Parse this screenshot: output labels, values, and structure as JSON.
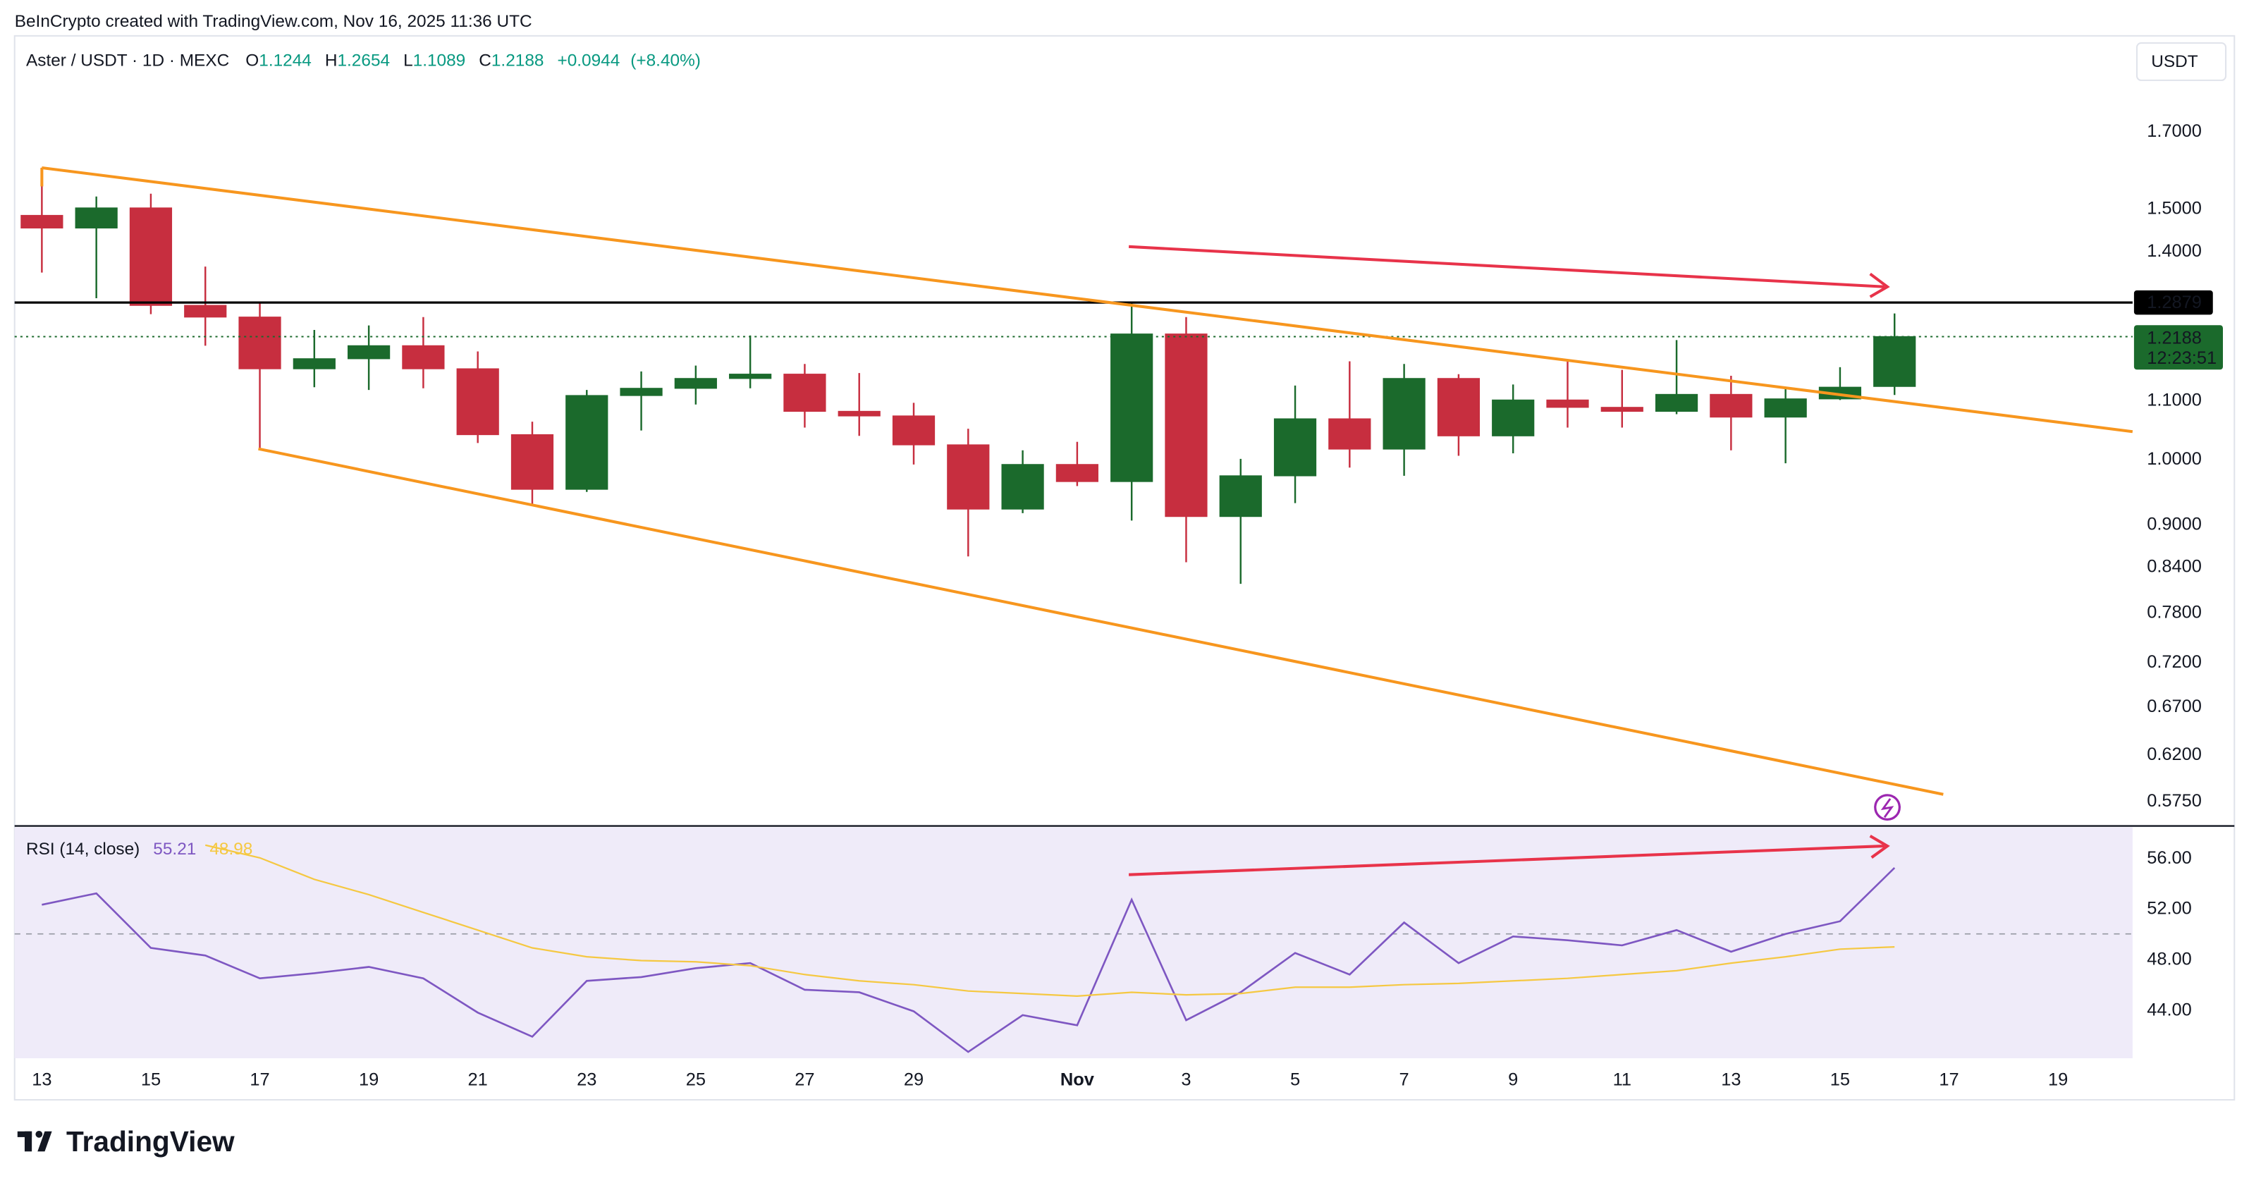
{
  "header": {
    "attribution": "BeInCrypto created with TradingView.com, Nov 16, 2025 11:36 UTC",
    "symbol": "Aster / USDT · 1D · MEXC",
    "currency": "USDT",
    "logo": "TradingView"
  },
  "chart_data": [
    {
      "type": "candlestick",
      "categories": [
        "13",
        null,
        "15",
        null,
        "17",
        null,
        "19",
        null,
        "21",
        null,
        "23",
        null,
        "25",
        null,
        "27",
        null,
        "29",
        null,
        null,
        "Nov",
        null,
        "3",
        null,
        "5",
        null,
        "7",
        null,
        "9",
        null,
        "11",
        null,
        "13",
        null,
        "15",
        null,
        "17",
        null,
        "19",
        null
      ],
      "open": [
        1.483,
        1.453,
        1.501,
        1.282,
        1.258,
        1.157,
        1.176,
        1.201,
        1.157,
        1.04,
        0.952,
        1.108,
        1.121,
        1.139,
        1.147,
        1.08,
        1.072,
        1.023,
        0.922,
        0.991,
        0.964,
        1.224,
        0.911,
        0.973,
        1.067,
        1.016,
        1.139,
        1.038,
        1.1,
        1.087,
        1.08,
        1.11,
        1.07,
        1.102,
        1.1244,
        null,
        null,
        null,
        null
      ],
      "high": [
        1.602,
        1.529,
        1.536,
        1.365,
        1.288,
        1.232,
        1.241,
        1.258,
        1.19,
        1.062,
        1.118,
        1.152,
        1.163,
        1.221,
        1.166,
        1.149,
        1.095,
        1.05,
        1.014,
        1.028,
        1.288,
        1.258,
        1.0,
        1.126,
        1.171,
        1.166,
        1.147,
        1.128,
        1.171,
        1.155,
        1.212,
        1.144,
        1.123,
        1.16,
        1.2654,
        null,
        null,
        null,
        null
      ],
      "low": [
        1.352,
        1.297,
        1.264,
        1.201,
        1.016,
        1.123,
        1.118,
        1.121,
        1.026,
        0.928,
        0.948,
        1.047,
        1.092,
        1.121,
        1.052,
        1.038,
        0.991,
        0.854,
        0.916,
        0.957,
        0.905,
        0.846,
        0.817,
        0.931,
        0.986,
        0.973,
        1.005,
        1.009,
        1.052,
        1.052,
        1.075,
        1.014,
        0.993,
        1.1,
        1.1089,
        null,
        null,
        null,
        null
      ],
      "close": [
        1.453,
        1.501,
        1.282,
        1.258,
        1.157,
        1.176,
        1.201,
        1.157,
        1.04,
        0.952,
        1.108,
        1.121,
        1.139,
        1.147,
        1.08,
        1.072,
        1.023,
        0.922,
        0.991,
        0.964,
        1.224,
        0.911,
        0.973,
        1.067,
        1.016,
        1.139,
        1.038,
        1.1,
        1.087,
        1.08,
        1.11,
        1.07,
        1.102,
        1.123,
        1.2188,
        null,
        null,
        null,
        null
      ],
      "up_color": "#1b6a2c",
      "down_color": "#c72e3f",
      "ohlc_labels": [
        "O",
        "H",
        "L",
        "C"
      ],
      "change": {
        "value": 0.0944,
        "label": "+0.0944"
      },
      "change_percent": {
        "value": 8.4,
        "label": "(+8.40%)"
      },
      "level": 1.2879,
      "countdown": "12:23:51",
      "log": true,
      "ylim": [
        0.5534,
        1.983
      ],
      "yticks": [
        {
          "value": 1.7,
          "label": "1.7000"
        },
        {
          "value": 1.5,
          "label": "1.5000"
        },
        {
          "value": 1.4,
          "label": "1.4000"
        },
        {
          "value": 1.1,
          "label": "1.1000"
        },
        {
          "value": 1.0,
          "label": "1.0000"
        },
        {
          "value": 0.9,
          "label": "0.9000"
        },
        {
          "value": 0.84,
          "label": "0.8400"
        },
        {
          "value": 0.78,
          "label": "0.7800"
        },
        {
          "value": 0.72,
          "label": "0.7200"
        },
        {
          "value": 0.67,
          "label": "0.6700"
        },
        {
          "value": 0.62,
          "label": "0.6200"
        },
        {
          "value": 0.575,
          "label": "0.5750"
        }
      ]
    },
    {
      "type": "line",
      "title": "RSI (14, close)",
      "series": [
        {
          "color": "#7e57c2",
          "values": [
            52.3,
            53.2,
            48.9,
            48.3,
            46.5,
            46.9,
            47.4,
            46.5,
            43.8,
            41.9,
            46.3,
            46.6,
            47.3,
            47.7,
            45.6,
            45.4,
            43.9,
            40.7,
            43.6,
            42.8,
            52.7,
            43.2,
            45.4,
            48.5,
            46.8,
            50.9,
            47.7,
            49.8,
            49.5,
            49.1,
            50.3,
            48.6,
            50.0,
            51.0,
            55.21,
            null,
            null,
            null,
            null
          ]
        },
        {
          "color": "#f5c842",
          "values": [
            null,
            null,
            null,
            57.0,
            56.0,
            54.3,
            53.1,
            51.7,
            50.3,
            48.9,
            48.2,
            47.9,
            47.8,
            47.5,
            46.8,
            46.3,
            46.0,
            45.5,
            45.3,
            45.1,
            45.4,
            45.2,
            45.3,
            45.8,
            45.8,
            46.0,
            46.1,
            46.3,
            46.5,
            46.8,
            47.1,
            47.7,
            48.2,
            48.8,
            48.98,
            null,
            null,
            null,
            null
          ]
        }
      ],
      "midline": 50,
      "ylim": [
        40.2,
        58.4
      ],
      "yticks": [
        {
          "value": 56,
          "label": "56.00"
        },
        {
          "value": 52,
          "label": "52.00"
        },
        {
          "value": 48,
          "label": "48.00"
        },
        {
          "value": 44,
          "label": "44.00"
        }
      ]
    }
  ]
}
